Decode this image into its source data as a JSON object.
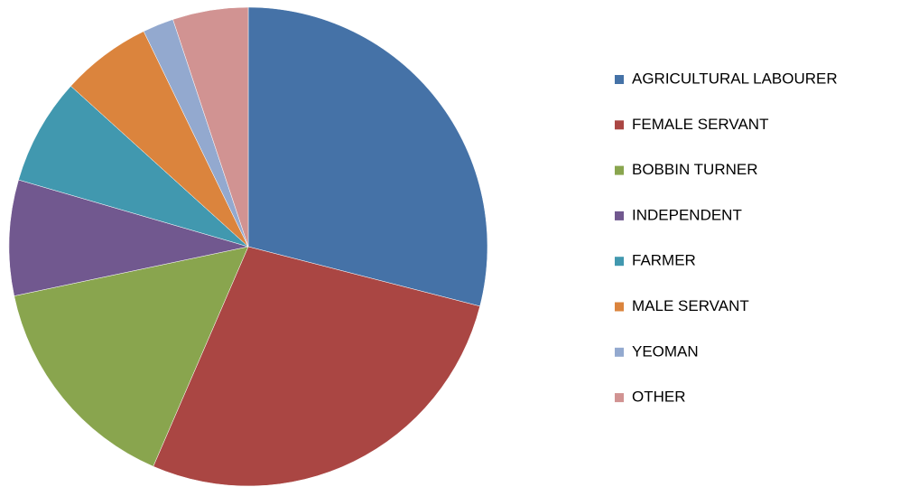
{
  "chart_data": {
    "type": "pie",
    "categories": [
      "AGRICULTURAL LABOURER",
      "FEMALE SERVANT",
      "BOBBIN TURNER",
      "INDEPENDENT",
      "FARMER",
      "MALE SERVANT",
      "YEOMAN",
      "OTHER"
    ],
    "values": [
      29,
      27.5,
      15.2,
      7.8,
      7.2,
      6.1,
      2.1,
      5.1
    ],
    "colors": [
      "#4572a7",
      "#aa4643",
      "#89a54e",
      "#71588f",
      "#4198af",
      "#db843d",
      "#93a9cf",
      "#d19392"
    ],
    "legend": "right"
  }
}
